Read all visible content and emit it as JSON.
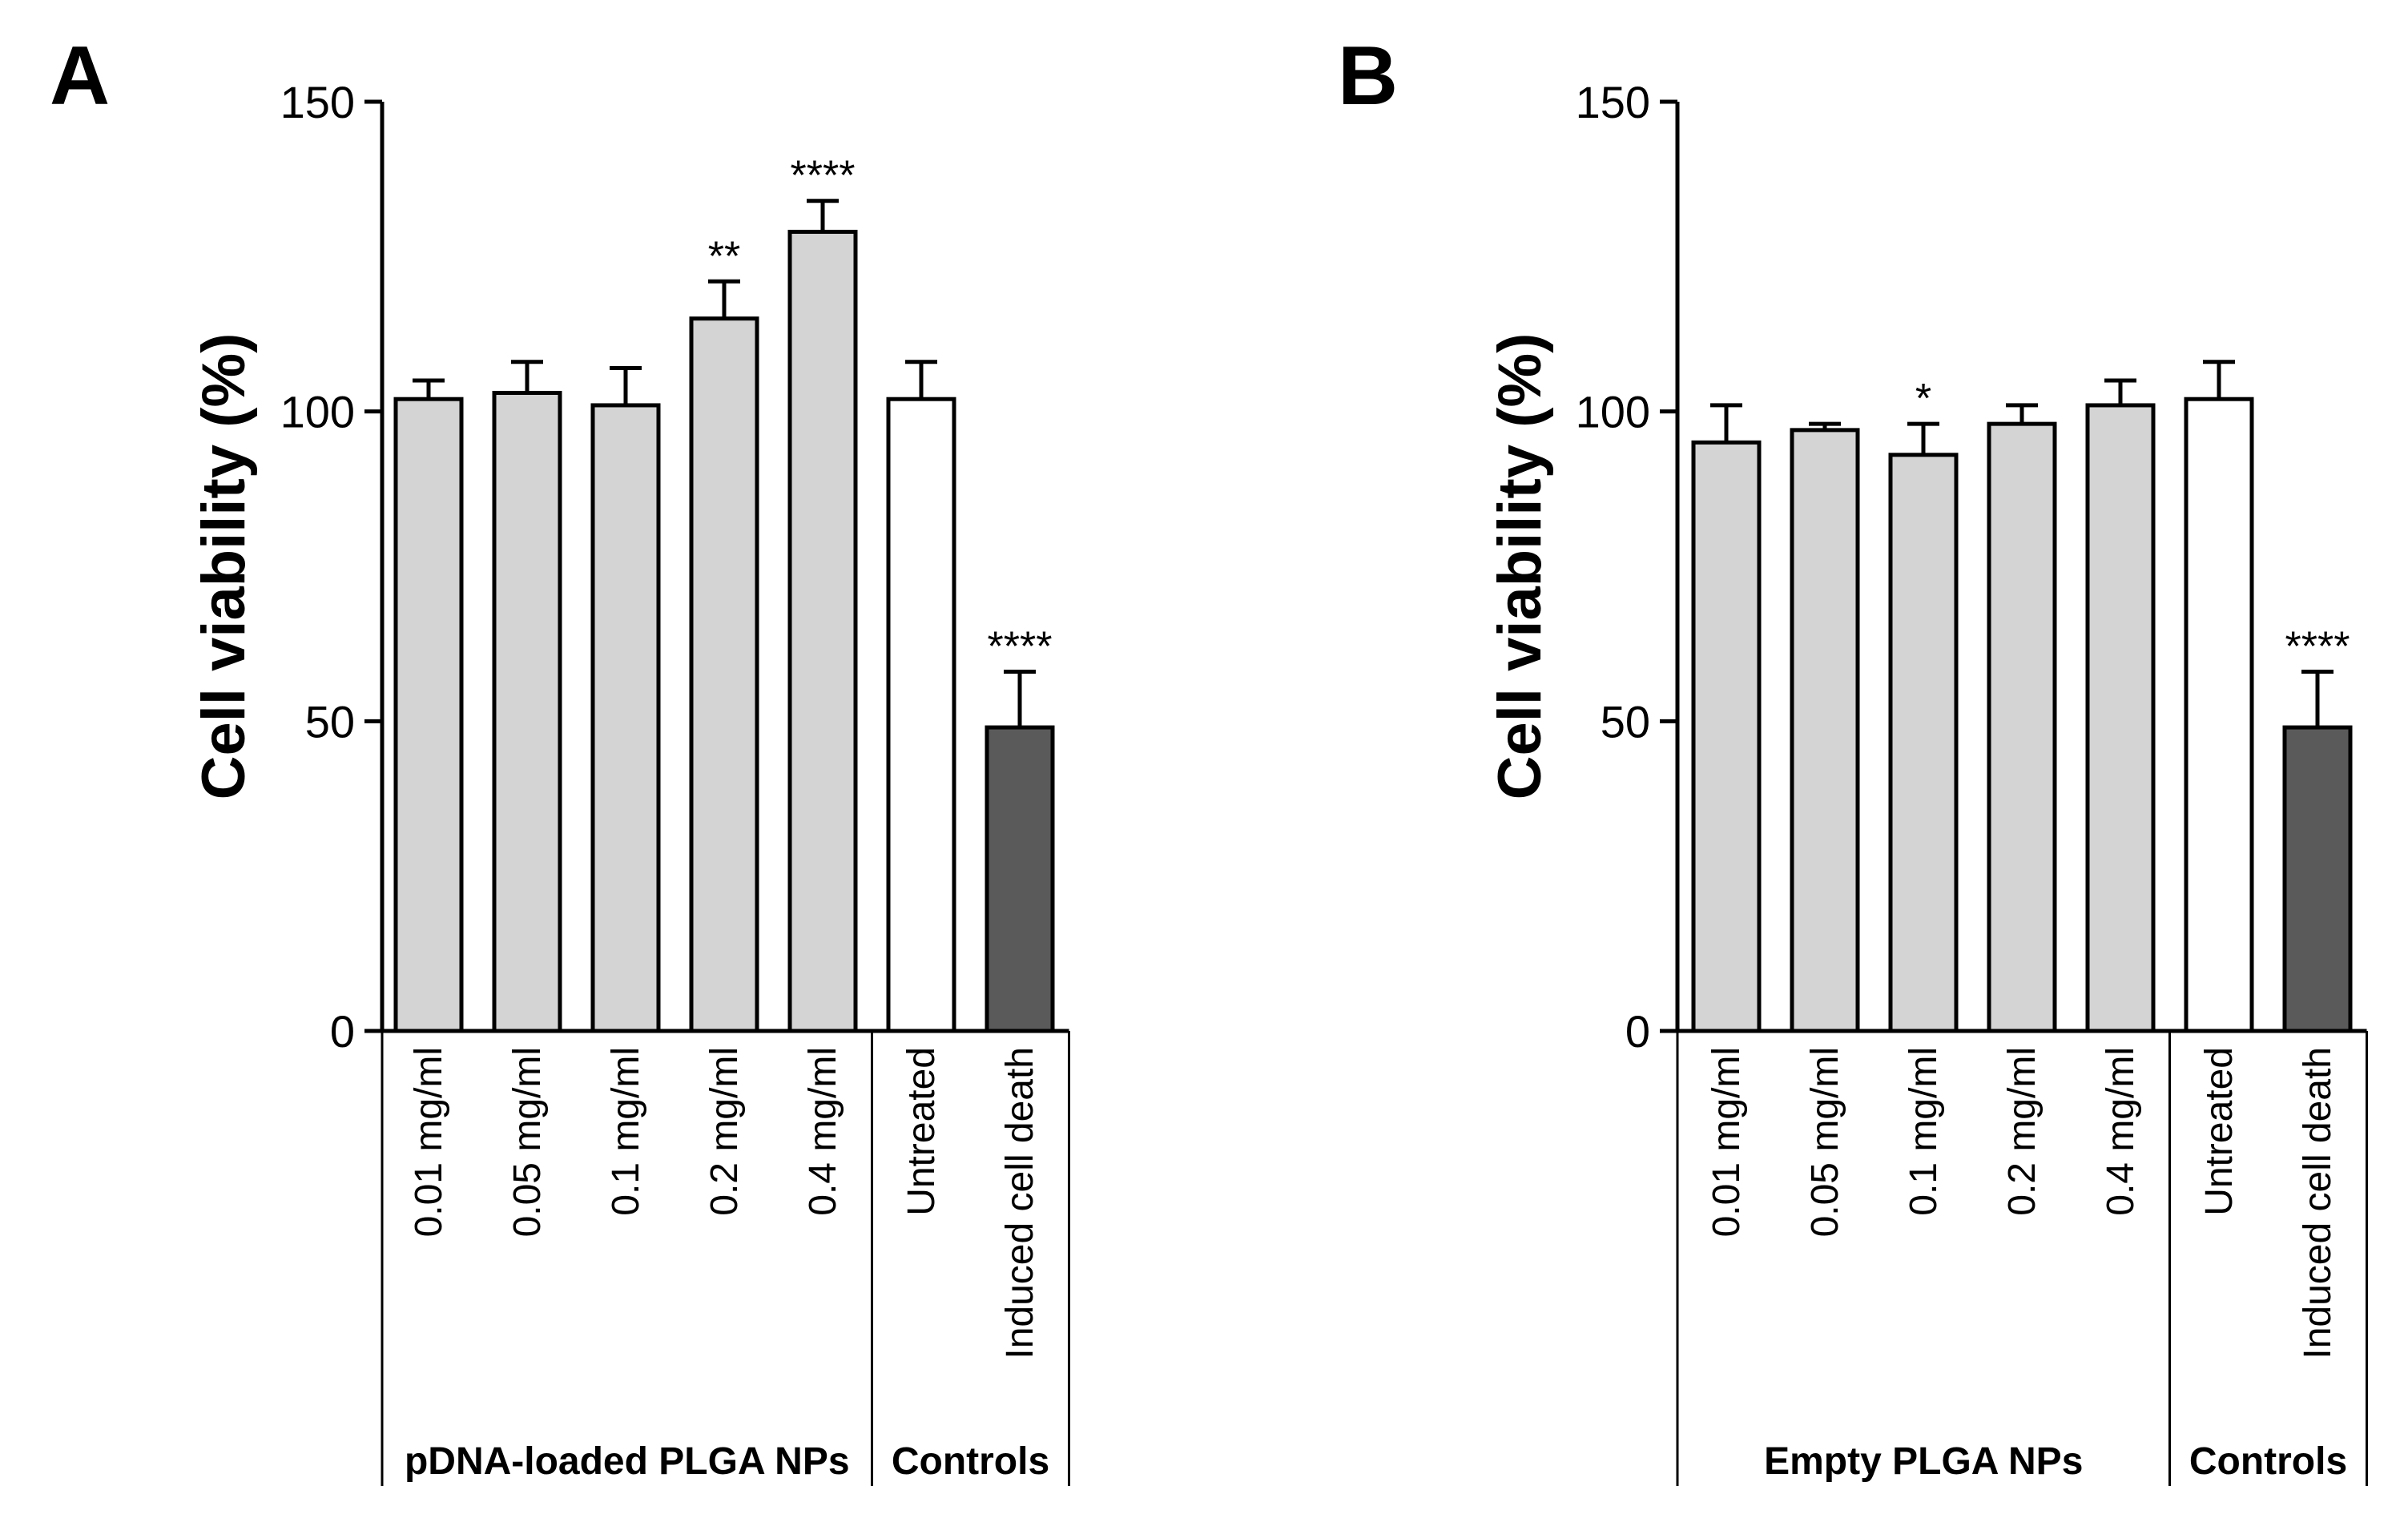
{
  "chart_data": [
    {
      "type": "bar",
      "panel": "A",
      "ylabel": "Cell viability (%)",
      "ylim": [
        0,
        150
      ],
      "yticks": [
        0,
        50,
        100,
        150
      ],
      "categories": [
        "0.01 mg/ml",
        "0.05 mg/ml",
        "0.1 mg/ml",
        "0.2 mg/ml",
        "0.4 mg/ml",
        "Untreated",
        "Induced cell death"
      ],
      "values": [
        102,
        103,
        101,
        115,
        129,
        102,
        49
      ],
      "errors": [
        3,
        5,
        6,
        6,
        5,
        6,
        9
      ],
      "significance": [
        "",
        "",
        "",
        "**",
        "****",
        "",
        "****"
      ],
      "bar_colors": [
        "#d4d4d4",
        "#d4d4d4",
        "#d4d4d4",
        "#d4d4d4",
        "#d4d4d4",
        "#ffffff",
        "#5a5a5a"
      ],
      "groups": [
        {
          "label": "pDNA-loaded PLGA NPs",
          "start": 0,
          "end": 4
        },
        {
          "label": "Controls",
          "start": 5,
          "end": 6
        }
      ]
    },
    {
      "type": "bar",
      "panel": "B",
      "ylabel": "Cell viability (%)",
      "ylim": [
        0,
        150
      ],
      "yticks": [
        0,
        50,
        100,
        150
      ],
      "categories": [
        "0.01 mg/ml",
        "0.05 mg/ml",
        "0.1 mg/ml",
        "0.2 mg/ml",
        "0.4 mg/ml",
        "Untreated",
        "Induced cell death"
      ],
      "values": [
        95,
        97,
        93,
        98,
        101,
        102,
        49
      ],
      "errors": [
        6,
        1,
        5,
        3,
        4,
        6,
        9
      ],
      "significance": [
        "",
        "",
        "*",
        "",
        "",
        "",
        "****"
      ],
      "bar_colors": [
        "#d4d4d4",
        "#d4d4d4",
        "#d4d4d4",
        "#d4d4d4",
        "#d4d4d4",
        "#ffffff",
        "#5a5a5a"
      ],
      "groups": [
        {
          "label": "Empty PLGA NPs",
          "start": 0,
          "end": 4
        },
        {
          "label": "Controls",
          "start": 5,
          "end": 6
        }
      ]
    }
  ]
}
